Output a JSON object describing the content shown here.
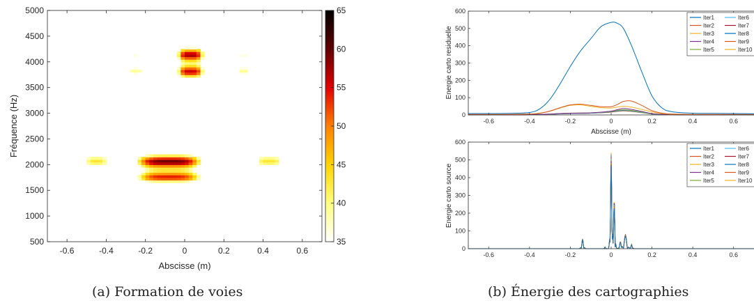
{
  "captions": {
    "a": "(a) Formation de voies",
    "b": "(b) Énergie des cartographies"
  },
  "chart_data": [
    {
      "type": "heatmap",
      "title": "",
      "xlabel": "Abscisse (m)",
      "ylabel": "Fréquence (Hz)",
      "xlim": [
        -0.7,
        0.7
      ],
      "ylim": [
        500,
        5000
      ],
      "xticks": [
        "-0.6",
        "-0.4",
        "-0.2",
        "0",
        "0.2",
        "0.4",
        "0.6"
      ],
      "yticks": [
        "500",
        "1000",
        "1500",
        "2000",
        "2500",
        "3000",
        "3500",
        "4000",
        "4500",
        "5000"
      ],
      "colorbar": {
        "range": [
          35,
          65
        ],
        "ticks": [
          "35",
          "40",
          "45",
          "50",
          "55",
          "60",
          "65"
        ],
        "colormap": [
          "#ffffff",
          "#ffff80",
          "#ffd400",
          "#ff8000",
          "#e00000",
          "#600000",
          "#000000"
        ]
      },
      "blobs": [
        {
          "x": 0.03,
          "y": 4000,
          "sx": 0.08,
          "sy": 430,
          "peak": 58
        },
        {
          "x": -0.08,
          "y": 1950,
          "sx": 0.2,
          "sy": 360,
          "peak": 60
        },
        {
          "x": -0.45,
          "y": 2000,
          "sx": 0.08,
          "sy": 350,
          "peak": 43
        },
        {
          "x": 0.43,
          "y": 2000,
          "sx": 0.09,
          "sy": 350,
          "peak": 43
        },
        {
          "x": -0.25,
          "y": 3950,
          "sx": 0.05,
          "sy": 300,
          "peak": 41
        },
        {
          "x": 0.3,
          "y": 3950,
          "sx": 0.05,
          "sy": 300,
          "peak": 41
        }
      ]
    },
    {
      "type": "line",
      "title": "",
      "xlabel": "Abscisse (m)",
      "ylabel": "Energie carto residuelle",
      "xlim": [
        -0.7,
        0.7
      ],
      "ylim": [
        0,
        600
      ],
      "xticks": [
        "-0.6",
        "-0.4",
        "-0.2",
        "0",
        "0.2",
        "0.4",
        "0.6"
      ],
      "yticks": [
        "0",
        "100",
        "200",
        "300",
        "400",
        "500",
        "600"
      ],
      "x": [
        -0.7,
        -0.6,
        -0.5,
        -0.4,
        -0.35,
        -0.3,
        -0.25,
        -0.2,
        -0.15,
        -0.1,
        -0.05,
        0,
        0.03,
        0.06,
        0.1,
        0.15,
        0.2,
        0.25,
        0.3,
        0.4,
        0.5,
        0.6,
        0.7
      ],
      "series": [
        {
          "name": "Iter1",
          "color": "#0072bd",
          "values": [
            8,
            8,
            9,
            14,
            35,
            90,
            180,
            280,
            370,
            440,
            510,
            535,
            530,
            500,
            400,
            250,
            110,
            40,
            18,
            10,
            9,
            8,
            7
          ]
        },
        {
          "name": "Iter2",
          "color": "#d95319",
          "values": [
            3,
            3,
            3,
            5,
            10,
            22,
            42,
            58,
            62,
            55,
            48,
            48,
            60,
            78,
            80,
            55,
            25,
            10,
            5,
            3,
            3,
            3,
            3
          ]
        },
        {
          "name": "Iter3",
          "color": "#edb120",
          "values": [
            2,
            2,
            3,
            5,
            10,
            22,
            40,
            55,
            58,
            50,
            42,
            40,
            45,
            50,
            45,
            32,
            18,
            8,
            4,
            2,
            2,
            2,
            2
          ]
        },
        {
          "name": "Iter4",
          "color": "#7e2f8e",
          "values": [
            1,
            1,
            1,
            2,
            3,
            5,
            8,
            10,
            11,
            12,
            16,
            22,
            30,
            38,
            32,
            20,
            8,
            3,
            2,
            1,
            1,
            1,
            1
          ]
        },
        {
          "name": "Iter5",
          "color": "#77ac30",
          "values": [
            1,
            1,
            1,
            2,
            3,
            5,
            8,
            10,
            11,
            12,
            15,
            20,
            26,
            30,
            26,
            17,
            7,
            3,
            2,
            1,
            1,
            1,
            1
          ]
        },
        {
          "name": "Iter6",
          "color": "#4dbeee",
          "values": [
            1,
            1,
            1,
            2,
            3,
            4,
            7,
            9,
            10,
            11,
            14,
            19,
            24,
            28,
            24,
            15,
            6,
            3,
            2,
            1,
            1,
            1,
            1
          ]
        },
        {
          "name": "Iter7",
          "color": "#a2142f",
          "values": [
            1,
            1,
            1,
            2,
            3,
            4,
            7,
            9,
            10,
            11,
            14,
            18,
            23,
            27,
            23,
            15,
            6,
            3,
            2,
            1,
            1,
            1,
            1
          ]
        },
        {
          "name": "Iter8",
          "color": "#0072bd",
          "values": [
            1,
            1,
            1,
            2,
            3,
            4,
            6,
            8,
            9,
            10,
            13,
            17,
            22,
            25,
            22,
            14,
            6,
            3,
            2,
            1,
            1,
            1,
            1
          ]
        },
        {
          "name": "Iter9",
          "color": "#d95319",
          "values": [
            1,
            1,
            1,
            2,
            3,
            4,
            6,
            8,
            9,
            10,
            13,
            17,
            21,
            24,
            21,
            14,
            6,
            3,
            2,
            1,
            1,
            1,
            1
          ]
        },
        {
          "name": "Iter10",
          "color": "#edb120",
          "values": [
            1,
            1,
            1,
            2,
            3,
            4,
            6,
            8,
            9,
            10,
            12,
            16,
            20,
            23,
            20,
            13,
            5,
            3,
            2,
            1,
            1,
            1,
            1
          ]
        }
      ],
      "legend": "top-right"
    },
    {
      "type": "line",
      "title": "",
      "xlabel": "",
      "ylabel": "Energie carto source",
      "xlim": [
        -0.7,
        0.7
      ],
      "ylim": [
        0,
        600
      ],
      "xticks": [
        "-0.6",
        "-0.4",
        "-0.2",
        "0",
        "0.2",
        "0.4",
        "0.6"
      ],
      "yticks": [
        "0",
        "100",
        "200",
        "300",
        "400",
        "500",
        "600"
      ],
      "peaks": [
        {
          "x": -0.14,
          "value": 55,
          "width": 0.005
        },
        {
          "x": -0.03,
          "value": 10,
          "width": 0.003
        },
        {
          "x": 0.0,
          "value": 540,
          "width": 0.004
        },
        {
          "x": 0.015,
          "value": 280,
          "width": 0.004
        },
        {
          "x": 0.045,
          "value": 40,
          "width": 0.005
        },
        {
          "x": 0.07,
          "value": 80,
          "width": 0.008
        },
        {
          "x": 0.1,
          "value": 25,
          "width": 0.004
        }
      ],
      "series": [
        {
          "name": "Iter1",
          "color": "#0072bd"
        },
        {
          "name": "Iter2",
          "color": "#d95319"
        },
        {
          "name": "Iter3",
          "color": "#edb120"
        },
        {
          "name": "Iter4",
          "color": "#7e2f8e"
        },
        {
          "name": "Iter5",
          "color": "#77ac30"
        },
        {
          "name": "Iter6",
          "color": "#4dbeee"
        },
        {
          "name": "Iter7",
          "color": "#a2142f"
        },
        {
          "name": "Iter8",
          "color": "#0072bd"
        },
        {
          "name": "Iter9",
          "color": "#d95319"
        },
        {
          "name": "Iter10",
          "color": "#edb120"
        }
      ],
      "legend": "top-right"
    }
  ]
}
